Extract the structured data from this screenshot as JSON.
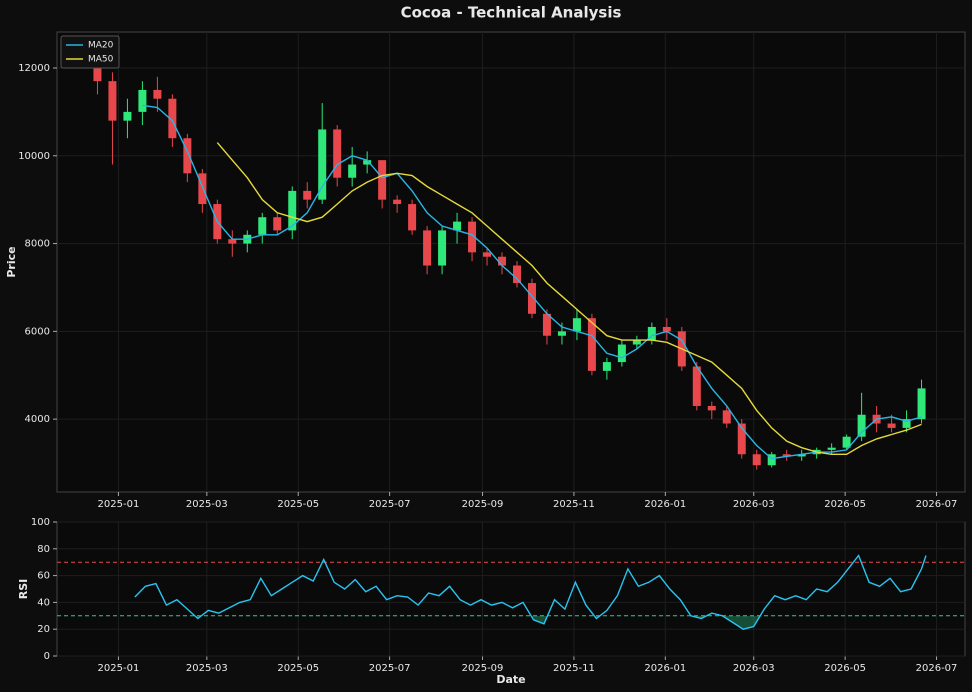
{
  "chart_data": [
    {
      "type": "candlestick",
      "title": "Cocoa - Technical Analysis",
      "ylabel": "Price",
      "x": [
        "2024-12-18",
        "2024-12-28",
        "2025-01-07",
        "2025-01-17",
        "2025-01-27",
        "2025-02-06",
        "2025-02-16",
        "2025-02-26",
        "2025-03-08",
        "2025-03-18",
        "2025-03-28",
        "2025-04-07",
        "2025-04-17",
        "2025-04-27",
        "2025-05-07",
        "2025-05-17",
        "2025-05-27",
        "2025-06-06",
        "2025-06-16",
        "2025-06-26",
        "2025-07-06",
        "2025-07-16",
        "2025-07-26",
        "2025-08-05",
        "2025-08-15",
        "2025-08-25",
        "2025-09-04",
        "2025-09-14",
        "2025-09-24",
        "2025-10-04",
        "2025-10-14",
        "2025-10-24",
        "2025-11-03",
        "2025-11-13",
        "2025-11-23",
        "2025-12-03",
        "2025-12-13",
        "2025-12-23",
        "2026-01-02",
        "2026-01-12",
        "2026-01-22",
        "2026-02-01",
        "2026-02-11",
        "2026-02-21",
        "2026-03-03",
        "2026-03-13",
        "2026-03-23",
        "2026-04-02",
        "2026-04-12",
        "2026-04-22",
        "2026-05-02",
        "2026-05-12",
        "2026-05-22",
        "2026-06-01",
        "2026-06-11",
        "2026-06-21"
      ],
      "open": [
        12200,
        11700,
        10800,
        11000,
        11500,
        11300,
        10400,
        9600,
        8900,
        8100,
        8000,
        8200,
        8600,
        8300,
        9200,
        9000,
        10600,
        9500,
        9800,
        9900,
        9000,
        8900,
        8300,
        7500,
        8300,
        8500,
        7800,
        7700,
        7500,
        7100,
        6400,
        5900,
        6000,
        6300,
        5100,
        5300,
        5700,
        5800,
        6100,
        6000,
        5200,
        4300,
        4200,
        3900,
        3200,
        2950,
        3200,
        3150,
        3200,
        3300,
        3350,
        3600,
        4100,
        3900,
        3800,
        4000
      ],
      "high": [
        12300,
        11900,
        11300,
        11700,
        11800,
        11400,
        10500,
        9700,
        9000,
        8300,
        8300,
        8700,
        8700,
        9300,
        9400,
        11200,
        10700,
        10200,
        10100,
        9900,
        9100,
        9000,
        8400,
        8400,
        8700,
        8600,
        7900,
        7800,
        7600,
        7200,
        6500,
        6200,
        6500,
        6400,
        5400,
        5800,
        5900,
        6200,
        6300,
        6100,
        5300,
        4400,
        4300,
        4000,
        3300,
        3250,
        3300,
        3300,
        3350,
        3450,
        3650,
        4600,
        4300,
        4100,
        4200,
        4900
      ],
      "low": [
        11400,
        9800,
        10400,
        10700,
        11000,
        10200,
        9400,
        8700,
        8000,
        7700,
        7800,
        8000,
        8200,
        8100,
        8800,
        8900,
        9300,
        9300,
        9600,
        8800,
        8700,
        8200,
        7300,
        7300,
        8000,
        7600,
        7500,
        7300,
        7000,
        6300,
        5700,
        5700,
        5800,
        5000,
        4900,
        5200,
        5600,
        5700,
        5800,
        5100,
        4200,
        4000,
        3800,
        3100,
        2850,
        2900,
        3050,
        3050,
        3100,
        3200,
        3300,
        3500,
        3700,
        3700,
        3700,
        3900
      ],
      "close": [
        11700,
        10800,
        11000,
        11500,
        11300,
        10400,
        9600,
        8900,
        8100,
        8000,
        8200,
        8600,
        8300,
        9200,
        9000,
        10600,
        9500,
        9800,
        9900,
        9000,
        8900,
        8300,
        7500,
        8300,
        8500,
        7800,
        7700,
        7500,
        7100,
        6400,
        5900,
        6000,
        6300,
        5100,
        5300,
        5700,
        5800,
        6100,
        6000,
        5200,
        4300,
        4200,
        3900,
        3200,
        2950,
        3200,
        3150,
        3200,
        3300,
        3350,
        3600,
        4100,
        3900,
        3800,
        4000,
        4700
      ],
      "up_color": "#2ee87a",
      "down_color": "#e8474c",
      "lines": [
        {
          "name": "MA20",
          "color": "#29b6e6",
          "values": [
            null,
            null,
            null,
            11150,
            11100,
            10800,
            10100,
            9300,
            8500,
            8100,
            8100,
            8200,
            8200,
            8400,
            8700,
            9300,
            9800,
            10000,
            9900,
            9500,
            9600,
            9200,
            8700,
            8400,
            8300,
            8200,
            7900,
            7500,
            7200,
            6800,
            6400,
            6100,
            6000,
            5900,
            5500,
            5400,
            5600,
            5900,
            6000,
            5800,
            5200,
            4700,
            4300,
            3800,
            3400,
            3100,
            3150,
            3200,
            3250,
            3250,
            3300,
            3700,
            4000,
            4050,
            3950,
            4050
          ]
        },
        {
          "name": "MA50",
          "color": "#e6d93a",
          "values": [
            null,
            null,
            null,
            null,
            null,
            null,
            null,
            null,
            10300,
            9900,
            9500,
            9000,
            8700,
            8600,
            8500,
            8600,
            8900,
            9200,
            9400,
            9550,
            9600,
            9550,
            9300,
            9100,
            8900,
            8700,
            8400,
            8100,
            7800,
            7500,
            7100,
            6800,
            6500,
            6200,
            5900,
            5800,
            5800,
            5800,
            5750,
            5600,
            5450,
            5300,
            5000,
            4700,
            4200,
            3800,
            3500,
            3350,
            3250,
            3200,
            3200,
            3400,
            3550,
            3650,
            3750,
            3880
          ]
        }
      ],
      "legend": "upper left",
      "grid": true,
      "xlim": [
        "2024-11-21",
        "2026-07-20"
      ],
      "xticks": [
        {
          "value": "2025-01-01",
          "label": "2025-01"
        },
        {
          "value": "2025-03-01",
          "label": "2025-03"
        },
        {
          "value": "2025-05-01",
          "label": "2025-05"
        },
        {
          "value": "2025-07-01",
          "label": "2025-07"
        },
        {
          "value": "2025-09-01",
          "label": "2025-09"
        },
        {
          "value": "2025-11-01",
          "label": "2025-11"
        },
        {
          "value": "2026-01-01",
          "label": "2026-01"
        },
        {
          "value": "2026-03-01",
          "label": "2026-03"
        },
        {
          "value": "2026-05-01",
          "label": "2026-05"
        },
        {
          "value": "2026-07-01",
          "label": "2026-07"
        }
      ],
      "ylim": [
        2340,
        12820
      ],
      "yticks": [
        4000,
        6000,
        8000,
        10000,
        12000
      ]
    },
    {
      "type": "line",
      "ylabel": "RSI",
      "xlabel": "Date",
      "x": [
        "2025-01-12",
        "2025-01-19",
        "2025-01-26",
        "2025-02-02",
        "2025-02-09",
        "2025-02-16",
        "2025-02-23",
        "2025-03-02",
        "2025-03-09",
        "2025-03-16",
        "2025-03-23",
        "2025-03-30",
        "2025-04-06",
        "2025-04-13",
        "2025-04-20",
        "2025-04-27",
        "2025-05-04",
        "2025-05-11",
        "2025-05-18",
        "2025-05-25",
        "2025-06-01",
        "2025-06-08",
        "2025-06-15",
        "2025-06-22",
        "2025-06-29",
        "2025-07-06",
        "2025-07-13",
        "2025-07-20",
        "2025-07-27",
        "2025-08-03",
        "2025-08-10",
        "2025-08-17",
        "2025-08-24",
        "2025-08-31",
        "2025-09-07",
        "2025-09-14",
        "2025-09-21",
        "2025-09-28",
        "2025-10-05",
        "2025-10-12",
        "2025-10-19",
        "2025-10-26",
        "2025-11-02",
        "2025-11-09",
        "2025-11-16",
        "2025-11-23",
        "2025-11-30",
        "2025-12-07",
        "2025-12-14",
        "2025-12-21",
        "2025-12-28",
        "2026-01-04",
        "2026-01-11",
        "2026-01-18",
        "2026-01-25",
        "2026-02-01",
        "2026-02-08",
        "2026-02-15",
        "2026-02-22",
        "2026-03-01",
        "2026-03-08",
        "2026-03-15",
        "2026-03-22",
        "2026-03-29",
        "2026-04-05",
        "2026-04-12",
        "2026-04-19",
        "2026-04-26",
        "2026-05-03",
        "2026-05-10",
        "2026-05-17",
        "2026-05-24",
        "2026-05-31",
        "2026-06-07",
        "2026-06-14",
        "2026-06-21",
        "2026-06-24"
      ],
      "series": [
        {
          "color": "#29c4f0",
          "values": [
            44,
            52,
            54,
            38,
            42,
            35,
            28,
            34,
            32,
            36,
            40,
            42,
            58,
            45,
            50,
            55,
            60,
            56,
            72,
            55,
            50,
            57,
            48,
            52,
            42,
            45,
            44,
            38,
            47,
            45,
            52,
            42,
            38,
            42,
            38,
            40,
            36,
            40,
            27,
            24,
            42,
            35,
            55,
            38,
            28,
            34,
            45,
            65,
            52,
            55,
            60,
            50,
            42,
            30,
            28,
            32,
            30,
            25,
            20,
            22,
            35,
            45,
            42,
            45,
            42,
            50,
            48,
            55,
            65,
            75,
            55,
            52,
            58,
            48,
            50,
            65,
            75
          ]
        }
      ],
      "hlines": [
        {
          "value": 70,
          "color": "#e8474c",
          "fill_below": false
        },
        {
          "value": 30,
          "color": "#2ecc8a",
          "fill_below": true
        }
      ],
      "grid": true,
      "xlim": [
        "2024-11-21",
        "2026-07-20"
      ],
      "xticks": [
        {
          "value": "2025-01-01",
          "label": "2025-01"
        },
        {
          "value": "2025-03-01",
          "label": "2025-03"
        },
        {
          "value": "2025-05-01",
          "label": "2025-05"
        },
        {
          "value": "2025-07-01",
          "label": "2025-07"
        },
        {
          "value": "2025-09-01",
          "label": "2025-09"
        },
        {
          "value": "2025-11-01",
          "label": "2025-11"
        },
        {
          "value": "2026-01-01",
          "label": "2026-01"
        },
        {
          "value": "2026-03-01",
          "label": "2026-03"
        },
        {
          "value": "2026-05-01",
          "label": "2026-05"
        },
        {
          "value": "2026-07-01",
          "label": "2026-07"
        }
      ],
      "ylim": [
        0,
        100
      ],
      "yticks": [
        0,
        20,
        40,
        60,
        80,
        100
      ]
    }
  ]
}
